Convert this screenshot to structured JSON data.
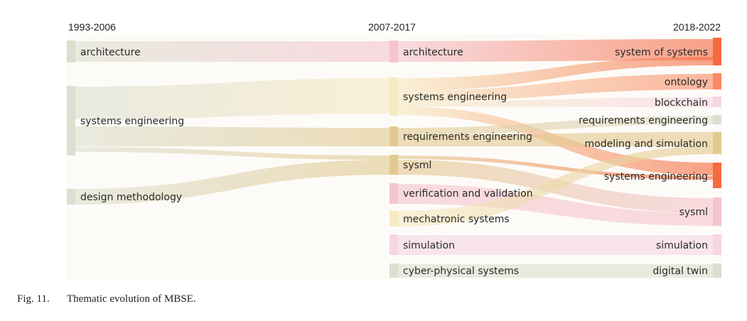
{
  "periods": [
    "1993-2006",
    "2007-2017",
    "2018-2022"
  ],
  "colors": {
    "sage": "#dcdfcf",
    "sand": "#e8d7ad",
    "pink": "#f5c5cf",
    "lightpink": "#f7d6e4",
    "coral": "#fa8a66",
    "coral_dark": "#f56b3f",
    "salmon": "#f9b4a0",
    "cream": "#f7e9c1",
    "tan": "#e2c98f"
  },
  "nodes": {
    "c1": [
      {
        "id": "a_arch",
        "label": "architecture",
        "color": "sage"
      },
      {
        "id": "a_se",
        "label": "systems engineering",
        "color": "sage"
      },
      {
        "id": "a_dm",
        "label": "design methodology",
        "color": "sage"
      }
    ],
    "c2": [
      {
        "id": "b_arch",
        "label": "architecture",
        "color": "pink"
      },
      {
        "id": "b_se",
        "label": "systems engineering",
        "color": "cream"
      },
      {
        "id": "b_re",
        "label": "requirements engineering",
        "color": "tan"
      },
      {
        "id": "b_sysml",
        "label": "sysml",
        "color": "tan"
      },
      {
        "id": "b_vv",
        "label": "verification and validation",
        "color": "pink"
      },
      {
        "id": "b_mech",
        "label": "mechatronic systems",
        "color": "cream"
      },
      {
        "id": "b_sim",
        "label": "simulation",
        "color": "lightpink"
      },
      {
        "id": "b_cps",
        "label": "cyber-physical systems",
        "color": "sage"
      }
    ],
    "c3": [
      {
        "id": "c_sos",
        "label": "system of systems",
        "color": "coral_dark"
      },
      {
        "id": "c_onto",
        "label": "ontology",
        "color": "coral"
      },
      {
        "id": "c_block",
        "label": "blockchain",
        "color": "lightpink"
      },
      {
        "id": "c_re",
        "label": "requirements engineering",
        "color": "sage"
      },
      {
        "id": "c_ms",
        "label": "modeling and simulation",
        "color": "tan"
      },
      {
        "id": "c_se",
        "label": "systems engineering",
        "color": "coral_dark"
      },
      {
        "id": "c_sysml",
        "label": "sysml",
        "color": "pink"
      },
      {
        "id": "c_sim",
        "label": "simulation",
        "color": "lightpink"
      },
      {
        "id": "c_dt",
        "label": "digital twin",
        "color": "sage"
      }
    ]
  },
  "links": [
    {
      "from": "a_arch",
      "to": "b_arch"
    },
    {
      "from": "a_se",
      "to": "b_se"
    },
    {
      "from": "a_se",
      "to": "b_re"
    },
    {
      "from": "a_se",
      "to": "b_sysml"
    },
    {
      "from": "a_dm",
      "to": "b_sysml"
    },
    {
      "from": "b_arch",
      "to": "c_sos"
    },
    {
      "from": "b_se",
      "to": "c_sos"
    },
    {
      "from": "b_se",
      "to": "c_onto"
    },
    {
      "from": "b_se",
      "to": "c_block"
    },
    {
      "from": "b_se",
      "to": "c_se"
    },
    {
      "from": "b_re",
      "to": "c_re"
    },
    {
      "from": "b_re",
      "to": "c_ms"
    },
    {
      "from": "b_sysml",
      "to": "c_se"
    },
    {
      "from": "b_sysml",
      "to": "c_sysml"
    },
    {
      "from": "b_vv",
      "to": "c_sysml"
    },
    {
      "from": "b_mech",
      "to": "c_ms"
    },
    {
      "from": "b_sim",
      "to": "c_sim"
    },
    {
      "from": "b_cps",
      "to": "c_dt"
    }
  ],
  "caption": {
    "number": "Fig. 11.",
    "text": "Thematic evolution of MBSE."
  }
}
